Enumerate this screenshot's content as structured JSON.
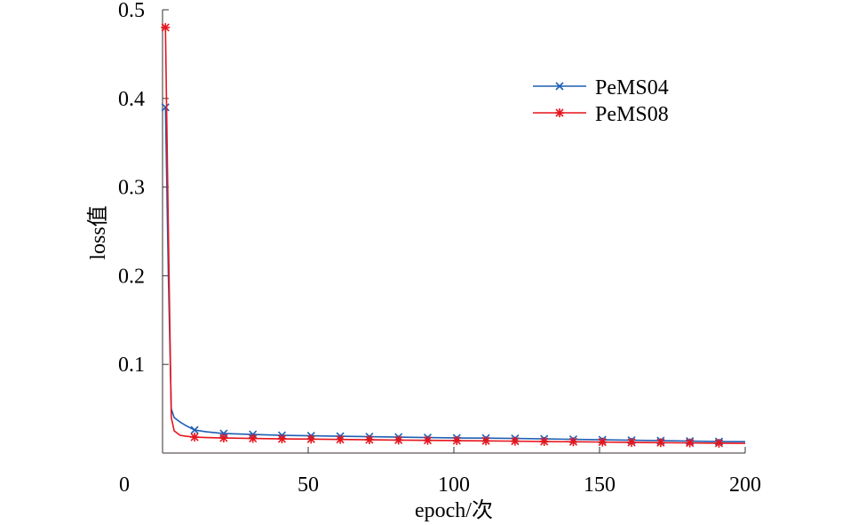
{
  "chart_data": {
    "type": "line",
    "title": "",
    "xlabel": "epoch/次",
    "ylabel": "loss值",
    "xlim": [
      0,
      200
    ],
    "ylim": [
      0,
      0.5
    ],
    "xticks": [
      0,
      50,
      100,
      150,
      200
    ],
    "xtick_labels": [
      "0",
      "50",
      "100",
      "150",
      "200"
    ],
    "yticks": [
      0.1,
      0.2,
      0.3,
      0.4,
      0.5
    ],
    "ytick_labels": [
      "0.1",
      "0.2",
      "0.3",
      "0.4",
      "0.5"
    ],
    "grid": false,
    "legend_position": "top-right",
    "series": [
      {
        "name": "PeMS04",
        "color": "#1f5fb4",
        "marker": "x",
        "x": [
          1,
          2,
          3,
          4,
          6,
          8,
          11,
          15,
          21,
          31,
          41,
          51,
          61,
          71,
          81,
          91,
          101,
          111,
          121,
          131,
          141,
          151,
          161,
          171,
          181,
          191,
          200
        ],
        "y": [
          0.39,
          0.2,
          0.05,
          0.04,
          0.035,
          0.031,
          0.026,
          0.024,
          0.022,
          0.021,
          0.02,
          0.0195,
          0.019,
          0.0185,
          0.018,
          0.0175,
          0.017,
          0.0168,
          0.0165,
          0.016,
          0.0155,
          0.015,
          0.0145,
          0.014,
          0.0135,
          0.013,
          0.0128
        ],
        "marker_x": [
          1,
          11,
          21,
          31,
          41,
          51,
          61,
          71,
          81,
          91,
          101,
          111,
          121,
          131,
          141,
          151,
          161,
          171,
          181,
          191
        ]
      },
      {
        "name": "PeMS08",
        "color": "#e8141c",
        "marker": "*",
        "x": [
          1,
          2,
          3,
          4,
          6,
          8,
          11,
          15,
          21,
          31,
          41,
          51,
          61,
          71,
          81,
          91,
          101,
          111,
          121,
          131,
          141,
          151,
          161,
          171,
          181,
          191,
          200
        ],
        "y": [
          0.48,
          0.25,
          0.04,
          0.025,
          0.02,
          0.019,
          0.018,
          0.0175,
          0.017,
          0.0165,
          0.016,
          0.0157,
          0.0153,
          0.015,
          0.0146,
          0.0143,
          0.014,
          0.0137,
          0.0134,
          0.013,
          0.0127,
          0.0124,
          0.012,
          0.0117,
          0.0114,
          0.0111,
          0.011
        ],
        "marker_x": [
          1,
          11,
          21,
          31,
          41,
          51,
          61,
          71,
          81,
          91,
          101,
          111,
          121,
          131,
          141,
          151,
          161,
          171,
          181,
          191
        ]
      }
    ]
  }
}
